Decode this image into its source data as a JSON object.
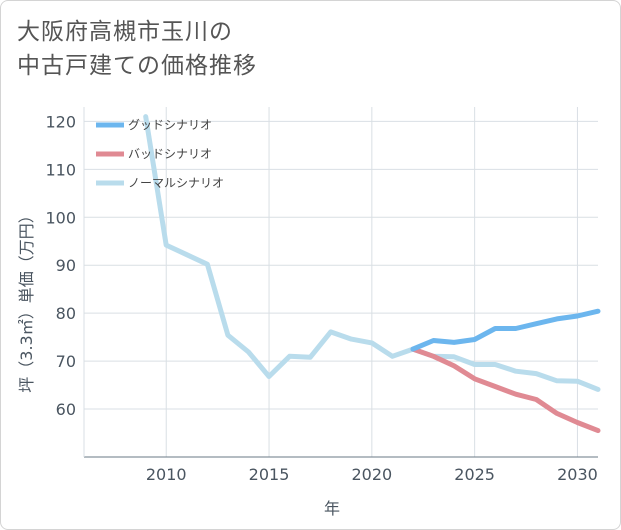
{
  "chart_data": {
    "type": "line",
    "title_lines": [
      "大阪府高槻市玉川の",
      "中古戸建ての価格推移"
    ],
    "xlabel": "年",
    "ylabel": "坪（3.3㎡）単価（万円）",
    "xlim": [
      2006,
      2031
    ],
    "ylim": [
      50,
      123
    ],
    "x_ticks": [
      2010,
      2015,
      2020,
      2025,
      2030
    ],
    "y_ticks": [
      60,
      70,
      80,
      90,
      100,
      110,
      120
    ],
    "grid": true,
    "legend_position": "top-left",
    "series": [
      {
        "name": "グッドシナリオ",
        "color": "#6cb6ee",
        "x": [
          2022,
          2023,
          2024,
          2025,
          2026,
          2027,
          2028,
          2029,
          2030,
          2031
        ],
        "values": [
          72.5,
          74.3,
          73.9,
          74.5,
          76.8,
          76.8,
          77.8,
          78.8,
          79.4,
          80.4
        ]
      },
      {
        "name": "バッドシナリオ",
        "color": "#e08a93",
        "x": [
          2022,
          2023,
          2024,
          2025,
          2026,
          2027,
          2028,
          2029,
          2030,
          2031
        ],
        "values": [
          72.5,
          71.0,
          69.0,
          66.3,
          64.7,
          63.1,
          62.0,
          59.1,
          57.2,
          55.5
        ]
      },
      {
        "name": "ノーマルシナリオ",
        "color": "#b9dcec",
        "x": [
          2009,
          2010,
          2011,
          2012,
          2013,
          2014,
          2015,
          2016,
          2017,
          2018,
          2019,
          2020,
          2021,
          2022,
          2023,
          2024,
          2025,
          2026,
          2027,
          2028,
          2029,
          2030,
          2031
        ],
        "values": [
          121,
          94.2,
          92.2,
          90.2,
          75.4,
          71.9,
          66.8,
          71.0,
          70.8,
          76.1,
          74.6,
          73.8,
          71.0,
          72.5,
          71.0,
          70.9,
          69.3,
          69.3,
          67.9,
          67.4,
          65.9,
          65.8,
          64.1
        ]
      }
    ]
  }
}
